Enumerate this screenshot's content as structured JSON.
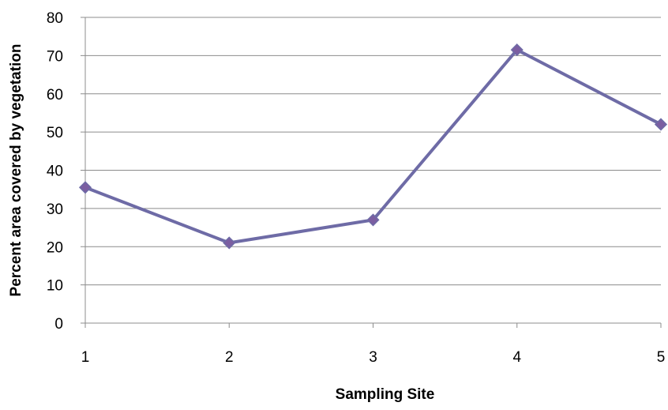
{
  "chart_data": {
    "type": "line",
    "title": "",
    "xlabel": "Sampling Site",
    "ylabel": "Percent area covered by vegetation",
    "categories": [
      "1",
      "2",
      "3",
      "4",
      "5"
    ],
    "series": [
      {
        "values": [
          35.5,
          21,
          27,
          71.5,
          52
        ]
      }
    ],
    "ylim": [
      0,
      80
    ],
    "yticks": [
      0,
      10,
      20,
      30,
      40,
      50,
      60,
      70,
      80
    ],
    "grid": true,
    "legend": "none",
    "marker": "diamond",
    "colors": {
      "line": "#6E6BA6",
      "marker": "#7B5EA1",
      "grid": "#8C8C8C",
      "axis": "#8C8C8C"
    }
  }
}
